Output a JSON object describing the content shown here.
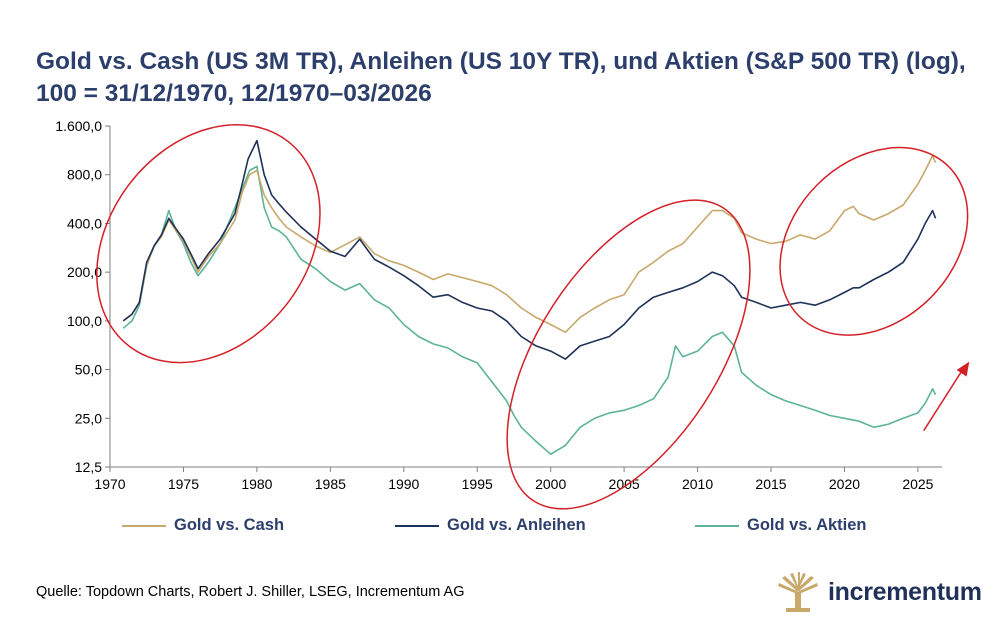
{
  "title": "Gold vs. Cash (US 3M TR), Anleihen (US 10Y TR), und Aktien (S&P 500 TR) (log), 100 = 31/12/1970, 12/1970–03/2026",
  "source": "Quelle: Topdown Charts, Robert J. Shiller, LSEG, Incrementum AG",
  "logo": {
    "text": "incrementum",
    "icon": "tree-icon",
    "color": "#c8a96b"
  },
  "chart_data": {
    "type": "line",
    "xlabel": "",
    "ylabel": "",
    "log_scale": true,
    "xlim": [
      1970,
      2026.3
    ],
    "ylim": [
      12.5,
      1600
    ],
    "x_ticks": [
      1970,
      1975,
      1980,
      1985,
      1990,
      1995,
      2000,
      2005,
      2010,
      2015,
      2020,
      2025
    ],
    "x_tick_labels": [
      "1970",
      "1975",
      "1980",
      "1985",
      "1990",
      "1995",
      "2000",
      "2005",
      "2010",
      "2015",
      "2020",
      "2025"
    ],
    "y_ticks": [
      12.5,
      25,
      50,
      100,
      200,
      400,
      800,
      1600
    ],
    "y_tick_labels": [
      "12,5",
      "25,0",
      "50,0",
      "100,0",
      "200,0",
      "400,0",
      "800,0",
      "1.600,0"
    ],
    "grid": false,
    "legend_position": "bottom",
    "series": [
      {
        "name": "Gold vs. Cash",
        "color": "#c8a96b",
        "x": [
          1970.9,
          1971.5,
          1972.0,
          1972.5,
          1973.0,
          1973.5,
          1974.0,
          1974.5,
          1975.0,
          1975.5,
          1976.0,
          1976.7,
          1977.5,
          1978.5,
          1979.0,
          1979.5,
          1980.0,
          1980.5,
          1981.0,
          1981.5,
          1982.0,
          1983.0,
          1984.0,
          1985.0,
          1986.0,
          1987.0,
          1988.0,
          1989.0,
          1990.0,
          1991.0,
          1992.0,
          1993.0,
          1994.0,
          1995.0,
          1996.0,
          1997.0,
          1998.0,
          1999.0,
          2000.0,
          2001.0,
          2002.0,
          2003.0,
          2004.0,
          2005.0,
          2006.0,
          2007.0,
          2008.0,
          2009.0,
          2010.0,
          2011.0,
          2011.7,
          2012.5,
          2013.0,
          2014.0,
          2015.0,
          2016.0,
          2017.0,
          2018.0,
          2019.0,
          2020.0,
          2020.6,
          2021.0,
          2022.0,
          2023.0,
          2024.0,
          2025.0,
          2025.5,
          2026.0,
          2026.2
        ],
        "values": [
          100,
          110,
          130,
          220,
          290,
          330,
          420,
          360,
          310,
          250,
          200,
          250,
          300,
          420,
          620,
          800,
          850,
          600,
          500,
          430,
          380,
          330,
          290,
          265,
          295,
          330,
          260,
          235,
          220,
          200,
          180,
          195,
          185,
          175,
          165,
          145,
          120,
          105,
          95,
          85,
          105,
          120,
          135,
          145,
          200,
          230,
          270,
          300,
          380,
          480,
          480,
          430,
          350,
          320,
          300,
          310,
          340,
          320,
          360,
          480,
          510,
          460,
          420,
          460,
          520,
          700,
          850,
          1050,
          950
        ]
      },
      {
        "name": "Gold vs. Anleihen",
        "color": "#1f3158",
        "x": [
          1970.9,
          1971.5,
          1972.0,
          1972.5,
          1973.0,
          1973.5,
          1974.0,
          1974.5,
          1975.0,
          1975.5,
          1976.0,
          1976.7,
          1977.5,
          1978.5,
          1979.0,
          1979.4,
          1980.0,
          1980.5,
          1981.0,
          1981.5,
          1982.0,
          1983.0,
          1984.0,
          1985.0,
          1986.0,
          1987.0,
          1988.0,
          1989.0,
          1990.0,
          1991.0,
          1992.0,
          1993.0,
          1994.0,
          1995.0,
          1996.0,
          1997.0,
          1998.0,
          1999.0,
          2000.0,
          2001.0,
          2002.0,
          2003.0,
          2004.0,
          2005.0,
          2006.0,
          2007.0,
          2008.0,
          2009.0,
          2010.0,
          2011.0,
          2011.7,
          2012.5,
          2013.0,
          2014.0,
          2015.0,
          2016.0,
          2017.0,
          2018.0,
          2019.0,
          2020.0,
          2020.6,
          2021.0,
          2022.0,
          2023.0,
          2024.0,
          2025.0,
          2025.5,
          2026.0,
          2026.2
        ],
        "values": [
          100,
          110,
          130,
          230,
          290,
          340,
          430,
          370,
          320,
          260,
          210,
          260,
          320,
          460,
          700,
          1000,
          1300,
          800,
          600,
          530,
          470,
          380,
          320,
          270,
          250,
          320,
          240,
          215,
          190,
          165,
          140,
          145,
          130,
          120,
          115,
          100,
          80,
          70,
          65,
          58,
          70,
          75,
          80,
          95,
          120,
          140,
          150,
          160,
          175,
          200,
          190,
          165,
          140,
          130,
          120,
          125,
          130,
          125,
          135,
          150,
          160,
          160,
          180,
          200,
          230,
          320,
          400,
          480,
          430
        ]
      },
      {
        "name": "Gold vs. Aktien",
        "color": "#5db399",
        "x": [
          1970.9,
          1971.5,
          1972.0,
          1972.5,
          1973.0,
          1973.5,
          1974.0,
          1974.5,
          1975.0,
          1975.5,
          1976.0,
          1976.7,
          1977.5,
          1978.5,
          1979.0,
          1979.5,
          1980.0,
          1980.5,
          1981.0,
          1981.5,
          1982.0,
          1983.0,
          1984.0,
          1985.0,
          1986.0,
          1987.0,
          1988.0,
          1989.0,
          1990.0,
          1991.0,
          1992.0,
          1993.0,
          1994.0,
          1995.0,
          1996.0,
          1997.0,
          1997.5,
          1998.0,
          1999.0,
          2000.0,
          2001.0,
          2002.0,
          2003.0,
          2004.0,
          2005.0,
          2006.0,
          2007.0,
          2008.0,
          2008.5,
          2009.0,
          2010.0,
          2011.0,
          2011.7,
          2012.5,
          2013.0,
          2014.0,
          2015.0,
          2016.0,
          2017.0,
          2018.0,
          2019.0,
          2020.0,
          2021.0,
          2022.0,
          2023.0,
          2024.0,
          2025.0,
          2025.5,
          2026.0,
          2026.2
        ],
        "values": [
          90,
          100,
          125,
          220,
          290,
          340,
          480,
          360,
          300,
          230,
          190,
          230,
          300,
          500,
          650,
          850,
          900,
          500,
          380,
          360,
          330,
          240,
          210,
          175,
          155,
          170,
          135,
          120,
          95,
          80,
          72,
          68,
          60,
          55,
          42,
          32,
          26,
          22,
          18,
          15,
          17,
          22,
          25,
          27,
          28,
          30,
          33,
          45,
          70,
          60,
          65,
          80,
          85,
          70,
          48,
          40,
          35,
          32,
          30,
          28,
          26,
          25,
          24,
          22,
          23,
          25,
          27,
          31,
          38,
          35
        ]
      }
    ],
    "annotations": [
      {
        "type": "ellipse",
        "color": "#d42028"
      },
      {
        "type": "ellipse",
        "color": "#d42028"
      },
      {
        "type": "ellipse",
        "color": "#d42028"
      },
      {
        "type": "arrow",
        "color": "#d42028"
      }
    ]
  }
}
